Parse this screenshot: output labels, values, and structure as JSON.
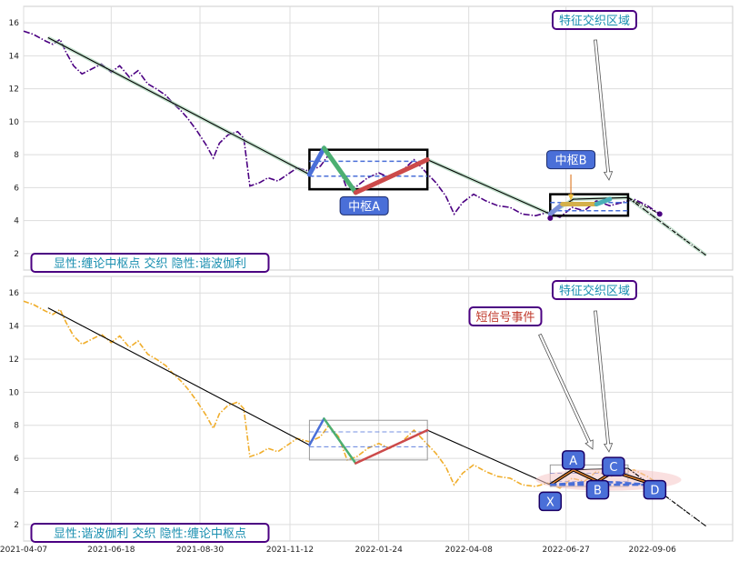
{
  "chart_data": [
    {
      "type": "line",
      "x_axis": "date",
      "xlim": [
        "2021-04-07",
        "2022-11-11"
      ],
      "ylim": [
        1,
        17
      ],
      "yticks": [
        2,
        4,
        6,
        8,
        10,
        12,
        14,
        16
      ],
      "grid": true,
      "colors": {
        "price": "#4b0082",
        "trend": "#000000",
        "band": "#99ccaa",
        "pivot_box": "#000000",
        "pivot_dash": "#4a6fd8"
      },
      "price_series": [
        [
          "2021-04-07",
          15.5
        ],
        [
          "2021-04-15",
          15.3
        ],
        [
          "2021-04-25",
          14.9
        ],
        [
          "2021-05-01",
          14.7
        ],
        [
          "2021-05-07",
          15.0
        ],
        [
          "2021-05-12",
          14.2
        ],
        [
          "2021-05-18",
          13.4
        ],
        [
          "2021-05-25",
          12.9
        ],
        [
          "2021-06-02",
          13.2
        ],
        [
          "2021-06-10",
          13.5
        ],
        [
          "2021-06-18",
          13.0
        ],
        [
          "2021-06-25",
          13.4
        ],
        [
          "2021-07-03",
          12.7
        ],
        [
          "2021-07-10",
          13.1
        ],
        [
          "2021-07-18",
          12.3
        ],
        [
          "2021-07-25",
          12.0
        ],
        [
          "2021-08-02",
          11.6
        ],
        [
          "2021-08-08",
          11.1
        ],
        [
          "2021-08-14",
          10.7
        ],
        [
          "2021-08-20",
          10.2
        ],
        [
          "2021-08-27",
          9.5
        ],
        [
          "2021-09-04",
          8.6
        ],
        [
          "2021-09-10",
          7.8
        ],
        [
          "2021-09-15",
          8.7
        ],
        [
          "2021-09-22",
          9.2
        ],
        [
          "2021-09-30",
          9.4
        ],
        [
          "2021-10-05",
          9.0
        ],
        [
          "2021-10-10",
          6.1
        ],
        [
          "2021-10-18",
          6.3
        ],
        [
          "2021-10-25",
          6.6
        ],
        [
          "2021-11-02",
          6.4
        ],
        [
          "2021-11-10",
          6.8
        ],
        [
          "2021-11-18",
          7.2
        ],
        [
          "2021-11-28",
          7.0
        ],
        [
          "2021-12-07",
          7.3
        ],
        [
          "2021-12-14",
          8.0
        ],
        [
          "2021-12-22",
          7.3
        ],
        [
          "2021-12-29",
          5.9
        ],
        [
          "2022-01-06",
          6.1
        ],
        [
          "2022-01-15",
          6.6
        ],
        [
          "2022-01-24",
          6.9
        ],
        [
          "2022-02-02",
          6.6
        ],
        [
          "2022-02-12",
          7.0
        ],
        [
          "2022-02-22",
          7.7
        ],
        [
          "2022-03-03",
          7.0
        ],
        [
          "2022-03-12",
          6.3
        ],
        [
          "2022-03-20",
          5.5
        ],
        [
          "2022-03-27",
          4.4
        ],
        [
          "2022-04-03",
          5.1
        ],
        [
          "2022-04-12",
          5.6
        ],
        [
          "2022-04-22",
          5.2
        ],
        [
          "2022-05-02",
          4.9
        ],
        [
          "2022-05-12",
          4.8
        ],
        [
          "2022-05-22",
          4.4
        ],
        [
          "2022-06-02",
          4.3
        ],
        [
          "2022-06-12",
          4.5
        ],
        [
          "2022-06-22",
          4.2
        ],
        [
          "2022-07-02",
          4.8
        ],
        [
          "2022-07-12",
          4.6
        ],
        [
          "2022-07-22",
          5.2
        ],
        [
          "2022-08-02",
          4.9
        ],
        [
          "2022-08-12",
          5.1
        ],
        [
          "2022-08-22",
          5.3
        ],
        [
          "2022-09-02",
          4.9
        ],
        [
          "2022-09-12",
          4.4
        ]
      ],
      "trend_line": [
        [
          "2021-04-27",
          15.1
        ],
        [
          "2021-11-28",
          6.8
        ],
        [
          "2021-12-10",
          8.4
        ],
        [
          "2022-01-05",
          5.7
        ],
        [
          "2022-03-05",
          7.7
        ],
        [
          "2022-06-14",
          4.4
        ],
        [
          "2022-07-03",
          5.3
        ],
        [
          "2022-08-17",
          5.4
        ],
        [
          "2022-10-20",
          1.9
        ]
      ],
      "pivot_boxes": [
        {
          "x": [
            "2021-11-28",
            "2022-03-05"
          ],
          "y": [
            5.9,
            8.3
          ],
          "dash_lines": [
            6.7,
            7.6
          ],
          "label": "中枢A",
          "label_at": [
            "2022-01-12",
            4.9
          ]
        },
        {
          "x": [
            "2022-06-14",
            "2022-08-17"
          ],
          "y": [
            4.3,
            5.6
          ],
          "dash_lines": [
            4.6,
            5.1
          ],
          "label": "中枢B",
          "label_at": [
            "2022-07-01",
            7.7
          ]
        }
      ],
      "strokes": [
        {
          "from": [
            "2021-11-28",
            6.8
          ],
          "to": [
            "2021-12-10",
            8.4
          ],
          "color": "#4a6fd8"
        },
        {
          "from": [
            "2021-12-10",
            8.4
          ],
          "to": [
            "2022-01-05",
            5.7
          ],
          "color": "#4caf72"
        },
        {
          "from": [
            "2022-01-05",
            5.7
          ],
          "to": [
            "2022-03-05",
            7.7
          ],
          "color": "#cc4a4a"
        },
        {
          "from": [
            "2022-06-14",
            4.4
          ],
          "to": [
            "2022-06-24",
            5.0
          ],
          "color": "#7a8fd8"
        },
        {
          "from": [
            "2022-06-24",
            5.0
          ],
          "to": [
            "2022-07-22",
            5.0
          ],
          "color": "#d4b04a"
        },
        {
          "from": [
            "2022-07-22",
            5.0
          ],
          "to": [
            "2022-08-02",
            5.3
          ],
          "color": "#4ab0b8"
        }
      ],
      "annotations": {
        "feature_zone": "特征交织区域",
        "pivot_a": "中枢A",
        "pivot_b": "中枢B"
      },
      "legend_text": "显性:缠论中枢点 交织 隐性:谐波伽利"
    },
    {
      "type": "line",
      "x_axis": "date",
      "xlim": [
        "2021-04-07",
        "2022-11-11"
      ],
      "ylim": [
        1,
        17
      ],
      "yticks": [
        2,
        4,
        6,
        8,
        10,
        12,
        14,
        16
      ],
      "xticks": [
        "2021-04-07",
        "2021-06-18",
        "2021-08-30",
        "2021-11-12",
        "2022-01-24",
        "2022-04-08",
        "2022-06-27",
        "2022-09-06"
      ],
      "grid": true,
      "colors": {
        "price": "#f0ad2a",
        "trend": "#000000",
        "pivot_box": "#999999",
        "pivot_dash": "#4a6fd8",
        "harmonic": "#4a6fd8",
        "ellipse": "#f5c6c6"
      },
      "price_series": [
        [
          "2021-04-07",
          15.5
        ],
        [
          "2021-04-15",
          15.3
        ],
        [
          "2021-04-25",
          14.9
        ],
        [
          "2021-05-01",
          14.7
        ],
        [
          "2021-05-07",
          15.0
        ],
        [
          "2021-05-12",
          14.2
        ],
        [
          "2021-05-18",
          13.4
        ],
        [
          "2021-05-25",
          12.9
        ],
        [
          "2021-06-02",
          13.2
        ],
        [
          "2021-06-10",
          13.5
        ],
        [
          "2021-06-18",
          13.0
        ],
        [
          "2021-06-25",
          13.4
        ],
        [
          "2021-07-03",
          12.7
        ],
        [
          "2021-07-10",
          13.1
        ],
        [
          "2021-07-18",
          12.3
        ],
        [
          "2021-07-25",
          12.0
        ],
        [
          "2021-08-02",
          11.6
        ],
        [
          "2021-08-08",
          11.1
        ],
        [
          "2021-08-14",
          10.7
        ],
        [
          "2021-08-20",
          10.2
        ],
        [
          "2021-08-27",
          9.5
        ],
        [
          "2021-09-04",
          8.6
        ],
        [
          "2021-09-10",
          7.8
        ],
        [
          "2021-09-15",
          8.7
        ],
        [
          "2021-09-22",
          9.2
        ],
        [
          "2021-09-30",
          9.4
        ],
        [
          "2021-10-05",
          9.0
        ],
        [
          "2021-10-10",
          6.1
        ],
        [
          "2021-10-18",
          6.3
        ],
        [
          "2021-10-25",
          6.6
        ],
        [
          "2021-11-02",
          6.4
        ],
        [
          "2021-11-10",
          6.8
        ],
        [
          "2021-11-18",
          7.2
        ],
        [
          "2021-11-28",
          7.0
        ],
        [
          "2021-12-07",
          7.3
        ],
        [
          "2021-12-14",
          8.0
        ],
        [
          "2021-12-22",
          7.3
        ],
        [
          "2021-12-29",
          5.9
        ],
        [
          "2022-01-06",
          6.1
        ],
        [
          "2022-01-15",
          6.6
        ],
        [
          "2022-01-24",
          6.9
        ],
        [
          "2022-02-02",
          6.6
        ],
        [
          "2022-02-12",
          7.0
        ],
        [
          "2022-02-22",
          7.7
        ],
        [
          "2022-03-03",
          7.0
        ],
        [
          "2022-03-12",
          6.3
        ],
        [
          "2022-03-20",
          5.5
        ],
        [
          "2022-03-27",
          4.4
        ],
        [
          "2022-04-03",
          5.1
        ],
        [
          "2022-04-12",
          5.6
        ],
        [
          "2022-04-22",
          5.2
        ],
        [
          "2022-05-02",
          4.9
        ],
        [
          "2022-05-12",
          4.8
        ],
        [
          "2022-05-22",
          4.4
        ],
        [
          "2022-06-02",
          4.3
        ],
        [
          "2022-06-12",
          4.5
        ],
        [
          "2022-06-22",
          4.2
        ],
        [
          "2022-07-02",
          4.8
        ],
        [
          "2022-07-12",
          4.6
        ],
        [
          "2022-07-22",
          5.2
        ],
        [
          "2022-08-02",
          4.9
        ],
        [
          "2022-08-12",
          5.1
        ],
        [
          "2022-08-22",
          5.3
        ],
        [
          "2022-09-02",
          4.9
        ],
        [
          "2022-09-12",
          4.4
        ]
      ],
      "trend_line": [
        [
          "2021-04-27",
          15.1
        ],
        [
          "2021-11-28",
          6.8
        ],
        [
          "2021-12-10",
          8.4
        ],
        [
          "2022-01-05",
          5.7
        ],
        [
          "2022-03-05",
          7.7
        ],
        [
          "2022-06-14",
          4.4
        ],
        [
          "2022-07-03",
          5.3
        ],
        [
          "2022-08-17",
          5.4
        ],
        [
          "2022-10-20",
          1.9
        ]
      ],
      "pivot_boxes": [
        {
          "x": [
            "2021-11-28",
            "2022-03-05"
          ],
          "y": [
            5.9,
            8.3
          ],
          "dash_lines": [
            6.7,
            7.6
          ]
        },
        {
          "x": [
            "2022-06-14",
            "2022-08-17"
          ],
          "y": [
            4.3,
            5.6
          ],
          "dash_lines": [
            4.6,
            5.1
          ]
        }
      ],
      "strokes": [
        {
          "from": [
            "2021-11-28",
            6.8
          ],
          "to": [
            "2021-12-10",
            8.4
          ],
          "color": "#4a6fd8"
        },
        {
          "from": [
            "2021-12-10",
            8.4
          ],
          "to": [
            "2022-01-05",
            5.7
          ],
          "color": "#4caf72"
        },
        {
          "from": [
            "2022-01-05",
            5.7
          ],
          "to": [
            "2022-03-05",
            7.7
          ],
          "color": "#cc4a4a"
        }
      ],
      "harmonic_points": [
        {
          "label": "X",
          "x": "2022-06-14",
          "y": 4.4
        },
        {
          "label": "A",
          "x": "2022-07-03",
          "y": 5.3
        },
        {
          "label": "B",
          "x": "2022-07-23",
          "y": 4.6
        },
        {
          "label": "C",
          "x": "2022-08-05",
          "y": 5.2
        },
        {
          "label": "D",
          "x": "2022-09-08",
          "y": 4.4
        }
      ],
      "annotations": {
        "feature_zone": "特征交织区域",
        "short_signal": "短信号事件"
      },
      "legend_text": "显性:谐波伽利 交织 隐性:缠论中枢点"
    }
  ],
  "ui": {
    "top_legend": "显性:缠论中枢点 交织 隐性:谐波伽利",
    "bottom_legend": "显性:谐波伽利 交织 隐性:缠论中枢点",
    "top_feature": "特征交织区域",
    "bottom_feature": "特征交织区域",
    "pivot_a": "中枢A",
    "pivot_b": "中枢B",
    "short_signal": "短信号事件",
    "x_labels": [
      "2021-04-07",
      "2021-06-18",
      "2021-08-30",
      "2021-11-12",
      "2022-01-24",
      "2022-04-08",
      "2022-06-27",
      "2022-09-06"
    ],
    "y_labels": [
      "2",
      "4",
      "6",
      "8",
      "10",
      "12",
      "14",
      "16"
    ]
  }
}
